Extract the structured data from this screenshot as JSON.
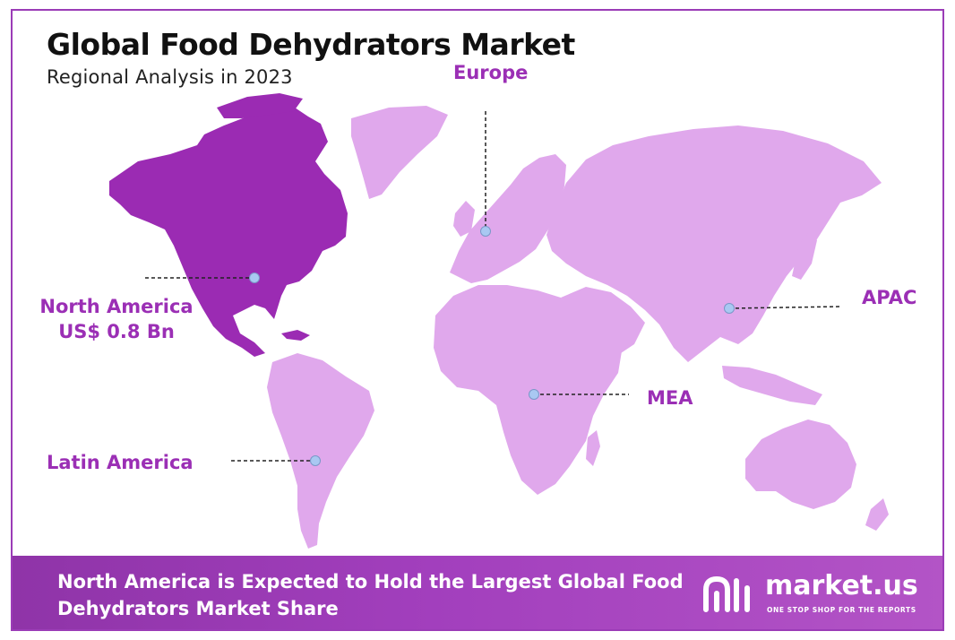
{
  "title": "Global Food Dehydrators Market",
  "subtitle": "Regional Analysis in 2023",
  "regions": {
    "north_america": {
      "name": "North America",
      "value": "US$ 0.8 Bn"
    },
    "europe": {
      "name": "Europe"
    },
    "apac": {
      "name": "APAC"
    },
    "mea": {
      "name": "MEA"
    },
    "latin_america": {
      "name": "Latin America"
    }
  },
  "footer": {
    "text": "North America is Expected to Hold the Largest Global Food Dehydrators Market Share"
  },
  "brand": {
    "name": "market.us",
    "tagline": "ONE STOP SHOP FOR THE REPORTS"
  },
  "colors": {
    "highlight_region": "#9b2bb3",
    "other_regions": "#e0a8ec",
    "label": "#9b2fb5",
    "marker": "#a9c8f2",
    "banner": "#a23fbd"
  }
}
